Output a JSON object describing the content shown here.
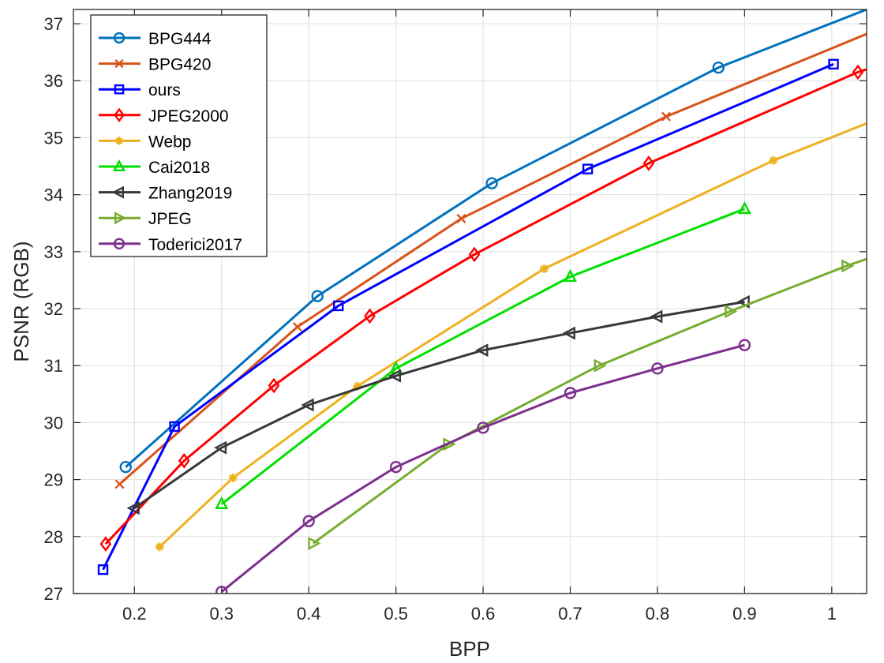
{
  "chart_data": {
    "type": "line",
    "title": "",
    "xlabel": "BPP",
    "ylabel": "PSNR (RGB)",
    "xlim": [
      0.13,
      1.04
    ],
    "ylim": [
      27,
      37.25
    ],
    "xticks": [
      0.2,
      0.3,
      0.4,
      0.5,
      0.6,
      0.7,
      0.8,
      0.9,
      1
    ],
    "yticks": [
      27,
      28,
      29,
      30,
      31,
      32,
      33,
      34,
      35,
      36,
      37
    ],
    "xtick_labels": [
      "0.2",
      "0.3",
      "0.4",
      "0.5",
      "0.6",
      "0.7",
      "0.8",
      "0.9",
      "1"
    ],
    "ytick_labels": [
      "27",
      "28",
      "29",
      "30",
      "31",
      "32",
      "33",
      "34",
      "35",
      "36",
      "37"
    ],
    "grid": true,
    "legend_position": "top-left",
    "series": [
      {
        "name": "BPG444",
        "color": "#0072BD",
        "marker": "circle",
        "points": [
          [
            0.19,
            29.22
          ],
          [
            0.41,
            32.22
          ],
          [
            0.61,
            34.2
          ],
          [
            0.87,
            36.23
          ]
        ],
        "line": [
          [
            0.19,
            29.22
          ],
          [
            0.41,
            32.22
          ],
          [
            0.61,
            34.2
          ],
          [
            0.87,
            36.23
          ],
          [
            1.04,
            37.25
          ]
        ]
      },
      {
        "name": "BPG420",
        "color": "#D95319",
        "marker": "x",
        "points": [
          [
            0.183,
            28.92
          ],
          [
            0.387,
            31.68
          ],
          [
            0.575,
            33.58
          ],
          [
            0.81,
            35.37
          ]
        ],
        "line": [
          [
            0.183,
            28.92
          ],
          [
            0.387,
            31.68
          ],
          [
            0.575,
            33.58
          ],
          [
            0.81,
            35.37
          ],
          [
            1.04,
            36.82
          ]
        ]
      },
      {
        "name": "ours",
        "color": "#0000FF",
        "marker": "square",
        "points": [
          [
            0.164,
            27.42
          ],
          [
            0.246,
            29.93
          ],
          [
            0.434,
            32.05
          ],
          [
            0.72,
            34.45
          ],
          [
            1.002,
            36.29
          ]
        ],
        "line": [
          [
            0.164,
            27.42
          ],
          [
            0.246,
            29.93
          ],
          [
            0.434,
            32.05
          ],
          [
            0.72,
            34.45
          ],
          [
            1.002,
            36.29
          ]
        ]
      },
      {
        "name": "JPEG2000",
        "color": "#FF0000",
        "marker": "diamond",
        "points": [
          [
            0.167,
            27.87
          ],
          [
            0.257,
            29.33
          ],
          [
            0.36,
            30.65
          ],
          [
            0.47,
            31.87
          ],
          [
            0.59,
            32.95
          ],
          [
            0.79,
            34.55
          ],
          [
            1.03,
            36.15
          ]
        ],
        "line": [
          [
            0.167,
            27.87
          ],
          [
            0.257,
            29.33
          ],
          [
            0.36,
            30.65
          ],
          [
            0.47,
            31.87
          ],
          [
            0.59,
            32.95
          ],
          [
            0.79,
            34.55
          ],
          [
            1.03,
            36.15
          ],
          [
            1.04,
            36.2
          ]
        ]
      },
      {
        "name": "Webp",
        "color": "#EDB120",
        "marker": "asterisk",
        "points": [
          [
            0.229,
            27.82
          ],
          [
            0.313,
            29.03
          ],
          [
            0.456,
            30.64
          ],
          [
            0.67,
            32.7
          ],
          [
            0.933,
            34.6
          ]
        ],
        "line": [
          [
            0.229,
            27.82
          ],
          [
            0.313,
            29.03
          ],
          [
            0.456,
            30.64
          ],
          [
            0.67,
            32.7
          ],
          [
            0.933,
            34.6
          ],
          [
            1.04,
            35.25
          ]
        ]
      },
      {
        "name": "Cai2018",
        "color": "#00E000",
        "marker": "triangle-up",
        "points": [
          [
            0.3,
            28.57
          ],
          [
            0.5,
            30.95
          ],
          [
            0.7,
            32.56
          ],
          [
            0.9,
            33.75
          ]
        ],
        "line": [
          [
            0.3,
            28.57
          ],
          [
            0.5,
            30.95
          ],
          [
            0.7,
            32.56
          ],
          [
            0.9,
            33.75
          ]
        ]
      },
      {
        "name": "Zhang2019",
        "color": "#383838",
        "marker": "triangle-left",
        "points": [
          [
            0.2,
            28.5
          ],
          [
            0.3,
            29.56
          ],
          [
            0.4,
            30.31
          ],
          [
            0.5,
            30.82
          ],
          [
            0.6,
            31.27
          ],
          [
            0.7,
            31.57
          ],
          [
            0.8,
            31.86
          ],
          [
            0.9,
            32.12
          ]
        ],
        "line": [
          [
            0.2,
            28.5
          ],
          [
            0.3,
            29.56
          ],
          [
            0.4,
            30.31
          ],
          [
            0.5,
            30.82
          ],
          [
            0.6,
            31.27
          ],
          [
            0.7,
            31.57
          ],
          [
            0.8,
            31.86
          ],
          [
            0.9,
            32.12
          ]
        ]
      },
      {
        "name": "JPEG",
        "color": "#77AC30",
        "marker": "triangle-right",
        "points": [
          [
            0.405,
            27.88
          ],
          [
            0.56,
            29.62
          ],
          [
            0.733,
            31.0
          ],
          [
            0.883,
            31.95
          ],
          [
            1.017,
            32.75
          ]
        ],
        "line": [
          [
            0.405,
            27.88
          ],
          [
            0.56,
            29.62
          ],
          [
            0.733,
            31.0
          ],
          [
            0.883,
            31.95
          ],
          [
            1.017,
            32.75
          ],
          [
            1.04,
            32.87
          ]
        ]
      },
      {
        "name": "Toderici2017",
        "color": "#7E2F8E",
        "marker": "circle",
        "points": [
          [
            0.3,
            27.03
          ],
          [
            0.4,
            28.27
          ],
          [
            0.5,
            29.22
          ],
          [
            0.6,
            29.91
          ],
          [
            0.7,
            30.52
          ],
          [
            0.8,
            30.95
          ],
          [
            0.9,
            31.36
          ]
        ],
        "line": [
          [
            0.3,
            27.03
          ],
          [
            0.4,
            28.27
          ],
          [
            0.5,
            29.22
          ],
          [
            0.6,
            29.91
          ],
          [
            0.7,
            30.52
          ],
          [
            0.8,
            30.95
          ],
          [
            0.9,
            31.36
          ]
        ]
      }
    ]
  }
}
